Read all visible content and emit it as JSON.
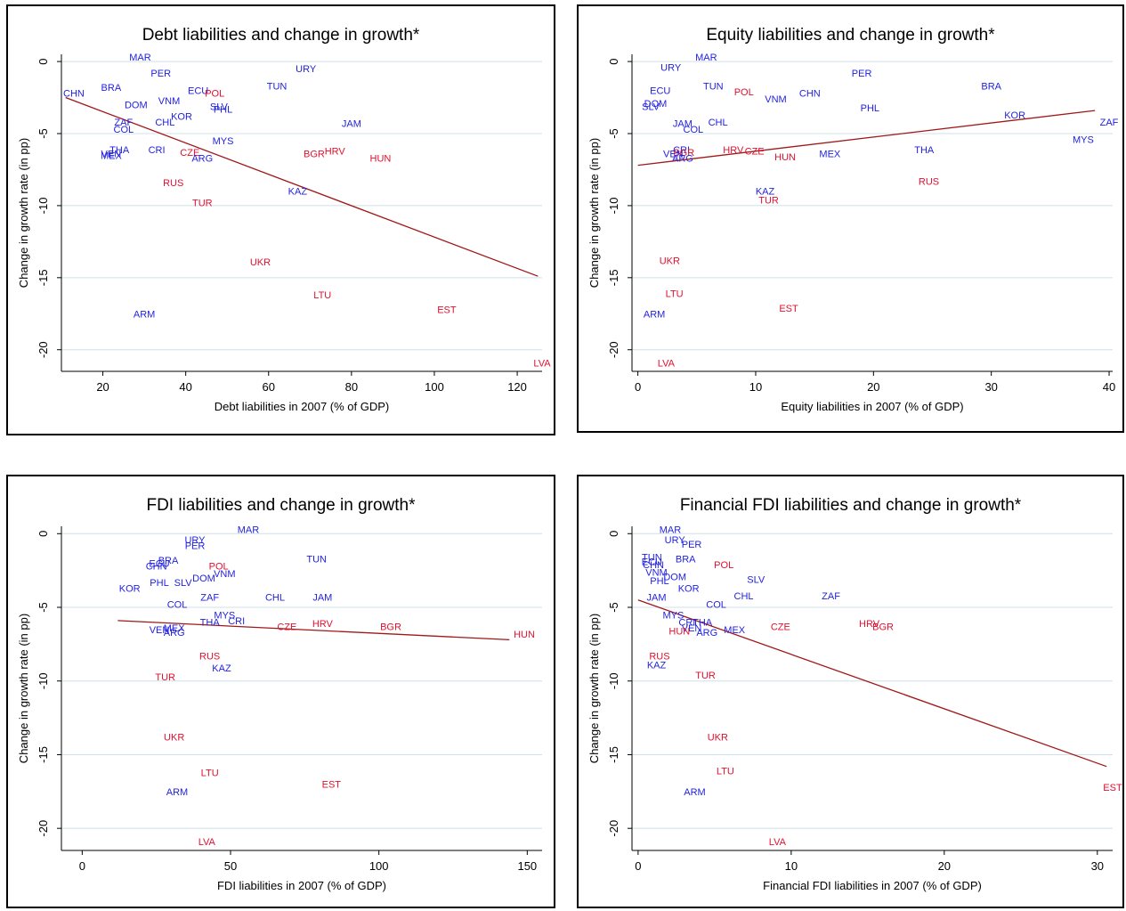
{
  "colors": {
    "blue": "#1f1fe0",
    "red": "#e01030",
    "fit_line": "#a01818",
    "grid": "#cfe0e8",
    "axis": "#000000"
  },
  "chart_data": [
    {
      "type": "scatter",
      "title": "Debt liabilities and change in growth*",
      "xlabel": "Debt liabilities in 2007 (% of GDP)",
      "ylabel": "Change in growth rate (in pp)",
      "xlim": [
        10,
        126
      ],
      "ylim": [
        -21.5,
        0.5
      ],
      "xticks": [
        20,
        40,
        60,
        80,
        100,
        120
      ],
      "yticks": [
        0,
        -5,
        -10,
        -15,
        -20
      ],
      "grid": true,
      "fit_line": [
        [
          11,
          -2.5
        ],
        [
          125,
          -14.9
        ]
      ],
      "points": [
        {
          "label": "MAR",
          "x": 29,
          "y": 0.3,
          "group": "blue"
        },
        {
          "label": "PER",
          "x": 34,
          "y": -0.8,
          "group": "blue"
        },
        {
          "label": "URY",
          "x": 69,
          "y": -0.5,
          "group": "blue"
        },
        {
          "label": "CHN",
          "x": 13,
          "y": -2.2,
          "group": "blue"
        },
        {
          "label": "BRA",
          "x": 22,
          "y": -1.8,
          "group": "blue"
        },
        {
          "label": "TUN",
          "x": 62,
          "y": -1.7,
          "group": "blue"
        },
        {
          "label": "ECU",
          "x": 43,
          "y": -2.0,
          "group": "blue"
        },
        {
          "label": "POL",
          "x": 47,
          "y": -2.2,
          "group": "red"
        },
        {
          "label": "VNM",
          "x": 36,
          "y": -2.7,
          "group": "blue"
        },
        {
          "label": "DOM",
          "x": 28,
          "y": -3.0,
          "group": "blue"
        },
        {
          "label": "SLV",
          "x": 48,
          "y": -3.1,
          "group": "blue"
        },
        {
          "label": "PHL",
          "x": 49,
          "y": -3.3,
          "group": "blue"
        },
        {
          "label": "KOR",
          "x": 39,
          "y": -3.8,
          "group": "blue"
        },
        {
          "label": "ZAF",
          "x": 25,
          "y": -4.2,
          "group": "blue"
        },
        {
          "label": "CHL",
          "x": 35,
          "y": -4.2,
          "group": "blue"
        },
        {
          "label": "JAM",
          "x": 80,
          "y": -4.3,
          "group": "blue"
        },
        {
          "label": "COL",
          "x": 25,
          "y": -4.7,
          "group": "blue"
        },
        {
          "label": "MYS",
          "x": 49,
          "y": -5.5,
          "group": "blue"
        },
        {
          "label": "THA",
          "x": 24,
          "y": -6.1,
          "group": "blue"
        },
        {
          "label": "CRI",
          "x": 33,
          "y": -6.1,
          "group": "blue"
        },
        {
          "label": "CZE",
          "x": 41,
          "y": -6.3,
          "group": "red"
        },
        {
          "label": "BGR",
          "x": 71,
          "y": -6.4,
          "group": "red"
        },
        {
          "label": "HRV",
          "x": 76,
          "y": -6.2,
          "group": "red"
        },
        {
          "label": "MEX",
          "x": 22,
          "y": -6.5,
          "group": "blue"
        },
        {
          "label": "VEN",
          "x": 22,
          "y": -6.4,
          "group": "blue"
        },
        {
          "label": "ARG",
          "x": 44,
          "y": -6.7,
          "group": "blue"
        },
        {
          "label": "HUN",
          "x": 87,
          "y": -6.7,
          "group": "red"
        },
        {
          "label": "RUS",
          "x": 37,
          "y": -8.4,
          "group": "red"
        },
        {
          "label": "KAZ",
          "x": 67,
          "y": -9.0,
          "group": "blue"
        },
        {
          "label": "TUR",
          "x": 44,
          "y": -9.8,
          "group": "red"
        },
        {
          "label": "UKR",
          "x": 58,
          "y": -13.9,
          "group": "red"
        },
        {
          "label": "LTU",
          "x": 73,
          "y": -16.2,
          "group": "red"
        },
        {
          "label": "EST",
          "x": 103,
          "y": -17.2,
          "group": "red"
        },
        {
          "label": "ARM",
          "x": 30,
          "y": -17.5,
          "group": "blue"
        },
        {
          "label": "LVA",
          "x": 126,
          "y": -20.9,
          "group": "red"
        }
      ]
    },
    {
      "type": "scatter",
      "title": "Equity liabilities and change in growth*",
      "xlabel": "Equity liabilities in 2007 (% of GDP)",
      "ylabel": "Change in growth rate (in pp)",
      "xlim": [
        -0.5,
        40.3
      ],
      "ylim": [
        -21.5,
        0.5
      ],
      "xticks": [
        0,
        10,
        20,
        30,
        40
      ],
      "yticks": [
        0,
        -5,
        -10,
        -15,
        -20
      ],
      "grid": true,
      "fit_line": [
        [
          0,
          -7.2
        ],
        [
          38.8,
          -3.4
        ]
      ],
      "points": [
        {
          "label": "MAR",
          "x": 5.8,
          "y": 0.3,
          "group": "blue"
        },
        {
          "label": "URY",
          "x": 2.8,
          "y": -0.4,
          "group": "blue"
        },
        {
          "label": "PER",
          "x": 19,
          "y": -0.8,
          "group": "blue"
        },
        {
          "label": "BRA",
          "x": 30,
          "y": -1.7,
          "group": "blue"
        },
        {
          "label": "TUN",
          "x": 6.4,
          "y": -1.7,
          "group": "blue"
        },
        {
          "label": "ECU",
          "x": 1.9,
          "y": -2.0,
          "group": "blue"
        },
        {
          "label": "POL",
          "x": 9.0,
          "y": -2.1,
          "group": "red"
        },
        {
          "label": "CHN",
          "x": 14.6,
          "y": -2.2,
          "group": "blue"
        },
        {
          "label": "VNM",
          "x": 11.7,
          "y": -2.6,
          "group": "blue"
        },
        {
          "label": "DOM",
          "x": 1.5,
          "y": -2.9,
          "group": "blue"
        },
        {
          "label": "SLV",
          "x": 1.1,
          "y": -3.1,
          "group": "blue"
        },
        {
          "label": "PHL",
          "x": 19.7,
          "y": -3.2,
          "group": "blue"
        },
        {
          "label": "KOR",
          "x": 32,
          "y": -3.7,
          "group": "blue"
        },
        {
          "label": "ZAF",
          "x": 40,
          "y": -4.2,
          "group": "blue"
        },
        {
          "label": "JAM",
          "x": 3.8,
          "y": -4.3,
          "group": "blue"
        },
        {
          "label": "CHL",
          "x": 6.8,
          "y": -4.2,
          "group": "blue"
        },
        {
          "label": "COL",
          "x": 4.7,
          "y": -4.7,
          "group": "blue"
        },
        {
          "label": "MYS",
          "x": 37.8,
          "y": -5.4,
          "group": "blue"
        },
        {
          "label": "CRI",
          "x": 3.7,
          "y": -6.1,
          "group": "blue"
        },
        {
          "label": "THA",
          "x": 24.3,
          "y": -6.1,
          "group": "blue"
        },
        {
          "label": "HRV",
          "x": 8.1,
          "y": -6.1,
          "group": "red"
        },
        {
          "label": "CZE",
          "x": 9.9,
          "y": -6.2,
          "group": "red"
        },
        {
          "label": "BGR",
          "x": 3.9,
          "y": -6.3,
          "group": "red"
        },
        {
          "label": "VEN",
          "x": 3.0,
          "y": -6.4,
          "group": "blue"
        },
        {
          "label": "ARG",
          "x": 3.8,
          "y": -6.7,
          "group": "blue"
        },
        {
          "label": "MEX",
          "x": 16.3,
          "y": -6.4,
          "group": "blue"
        },
        {
          "label": "HUN",
          "x": 12.5,
          "y": -6.6,
          "group": "red"
        },
        {
          "label": "RUS",
          "x": 24.7,
          "y": -8.3,
          "group": "red"
        },
        {
          "label": "KAZ",
          "x": 10.8,
          "y": -9.0,
          "group": "blue"
        },
        {
          "label": "TUR",
          "x": 11.1,
          "y": -9.6,
          "group": "red"
        },
        {
          "label": "UKR",
          "x": 2.7,
          "y": -13.8,
          "group": "red"
        },
        {
          "label": "LTU",
          "x": 3.1,
          "y": -16.1,
          "group": "red"
        },
        {
          "label": "EST",
          "x": 12.8,
          "y": -17.1,
          "group": "red"
        },
        {
          "label": "ARM",
          "x": 1.4,
          "y": -17.5,
          "group": "blue"
        },
        {
          "label": "LVA",
          "x": 2.4,
          "y": -20.9,
          "group": "red"
        }
      ]
    },
    {
      "type": "scatter",
      "title": "FDI liabilities and change in growth*",
      "xlabel": "FDI liabilities in 2007 (% of GDP)",
      "ylabel": "Change in growth rate (in pp)",
      "xlim": [
        -7,
        155
      ],
      "ylim": [
        -21.5,
        0.5
      ],
      "xticks": [
        0,
        50,
        100,
        150
      ],
      "yticks": [
        0,
        -5,
        -10,
        -15,
        -20
      ],
      "grid": true,
      "fit_line": [
        [
          12,
          -5.9
        ],
        [
          144,
          -7.2
        ]
      ],
      "points": [
        {
          "label": "MAR",
          "x": 56,
          "y": 0.3,
          "group": "blue"
        },
        {
          "label": "URY",
          "x": 38,
          "y": -0.4,
          "group": "blue"
        },
        {
          "label": "PER",
          "x": 38,
          "y": -0.8,
          "group": "blue"
        },
        {
          "label": "TUN",
          "x": 79,
          "y": -1.7,
          "group": "blue"
        },
        {
          "label": "BRA",
          "x": 29,
          "y": -1.8,
          "group": "blue"
        },
        {
          "label": "ECU",
          "x": 26,
          "y": -2.0,
          "group": "blue"
        },
        {
          "label": "CHN",
          "x": 25,
          "y": -2.2,
          "group": "blue"
        },
        {
          "label": "POL",
          "x": 46,
          "y": -2.2,
          "group": "red"
        },
        {
          "label": "VNM",
          "x": 48,
          "y": -2.7,
          "group": "blue"
        },
        {
          "label": "DOM",
          "x": 41,
          "y": -3.0,
          "group": "blue"
        },
        {
          "label": "PHL",
          "x": 26,
          "y": -3.3,
          "group": "blue"
        },
        {
          "label": "SLV",
          "x": 34,
          "y": -3.3,
          "group": "blue"
        },
        {
          "label": "KOR",
          "x": 16,
          "y": -3.7,
          "group": "blue"
        },
        {
          "label": "ZAF",
          "x": 43,
          "y": -4.3,
          "group": "blue"
        },
        {
          "label": "CHL",
          "x": 65,
          "y": -4.3,
          "group": "blue"
        },
        {
          "label": "JAM",
          "x": 81,
          "y": -4.3,
          "group": "blue"
        },
        {
          "label": "COL",
          "x": 32,
          "y": -4.8,
          "group": "blue"
        },
        {
          "label": "MYS",
          "x": 48,
          "y": -5.5,
          "group": "blue"
        },
        {
          "label": "THA",
          "x": 43,
          "y": -6.0,
          "group": "blue"
        },
        {
          "label": "CRI",
          "x": 52,
          "y": -5.9,
          "group": "blue"
        },
        {
          "label": "CZE",
          "x": 69,
          "y": -6.3,
          "group": "red"
        },
        {
          "label": "HRV",
          "x": 81,
          "y": -6.1,
          "group": "red"
        },
        {
          "label": "BGR",
          "x": 104,
          "y": -6.3,
          "group": "red"
        },
        {
          "label": "HUN",
          "x": 149,
          "y": -6.8,
          "group": "red"
        },
        {
          "label": "VEN",
          "x": 26,
          "y": -6.5,
          "group": "blue"
        },
        {
          "label": "MEX",
          "x": 31,
          "y": -6.4,
          "group": "blue"
        },
        {
          "label": "ARG",
          "x": 31,
          "y": -6.7,
          "group": "blue"
        },
        {
          "label": "RUS",
          "x": 43,
          "y": -8.3,
          "group": "red"
        },
        {
          "label": "KAZ",
          "x": 47,
          "y": -9.1,
          "group": "blue"
        },
        {
          "label": "TUR",
          "x": 28,
          "y": -9.7,
          "group": "red"
        },
        {
          "label": "UKR",
          "x": 31,
          "y": -13.8,
          "group": "red"
        },
        {
          "label": "LTU",
          "x": 43,
          "y": -16.2,
          "group": "red"
        },
        {
          "label": "EST",
          "x": 84,
          "y": -17.0,
          "group": "red"
        },
        {
          "label": "ARM",
          "x": 32,
          "y": -17.5,
          "group": "blue"
        },
        {
          "label": "LVA",
          "x": 42,
          "y": -20.9,
          "group": "red"
        }
      ]
    },
    {
      "type": "scatter",
      "title": "Financial FDI liabilities and change in growth*",
      "xlabel": "Financial FDI liabilities in 2007 (% of GDP)",
      "ylabel": "Change in growth rate (in pp)",
      "xlim": [
        -0.4,
        31
      ],
      "ylim": [
        -21.5,
        0.5
      ],
      "xticks": [
        0,
        10,
        20,
        30
      ],
      "yticks": [
        0,
        -5,
        -10,
        -15,
        -20
      ],
      "grid": true,
      "fit_line": [
        [
          0,
          -4.5
        ],
        [
          30.6,
          -15.8
        ]
      ],
      "points": [
        {
          "label": "MAR",
          "x": 2.1,
          "y": 0.3,
          "group": "blue"
        },
        {
          "label": "URY",
          "x": 2.4,
          "y": -0.4,
          "group": "blue"
        },
        {
          "label": "PER",
          "x": 3.5,
          "y": -0.7,
          "group": "blue"
        },
        {
          "label": "TUN",
          "x": 0.9,
          "y": -1.6,
          "group": "blue"
        },
        {
          "label": "BRA",
          "x": 3.1,
          "y": -1.7,
          "group": "blue"
        },
        {
          "label": "ECU",
          "x": 0.9,
          "y": -1.9,
          "group": "blue"
        },
        {
          "label": "CHN",
          "x": 1.0,
          "y": -2.1,
          "group": "blue"
        },
        {
          "label": "POL",
          "x": 5.6,
          "y": -2.1,
          "group": "red"
        },
        {
          "label": "VNM",
          "x": 1.2,
          "y": -2.6,
          "group": "blue"
        },
        {
          "label": "DOM",
          "x": 2.4,
          "y": -2.9,
          "group": "blue"
        },
        {
          "label": "PHL",
          "x": 1.4,
          "y": -3.2,
          "group": "blue"
        },
        {
          "label": "SLV",
          "x": 7.7,
          "y": -3.1,
          "group": "blue"
        },
        {
          "label": "KOR",
          "x": 3.3,
          "y": -3.7,
          "group": "blue"
        },
        {
          "label": "ZAF",
          "x": 12.6,
          "y": -4.2,
          "group": "blue"
        },
        {
          "label": "CHL",
          "x": 6.9,
          "y": -4.2,
          "group": "blue"
        },
        {
          "label": "JAM",
          "x": 1.2,
          "y": -4.3,
          "group": "blue"
        },
        {
          "label": "COL",
          "x": 5.1,
          "y": -4.8,
          "group": "blue"
        },
        {
          "label": "MYS",
          "x": 2.3,
          "y": -5.5,
          "group": "blue"
        },
        {
          "label": "CRI",
          "x": 3.2,
          "y": -6.0,
          "group": "blue"
        },
        {
          "label": "THA",
          "x": 4.2,
          "y": -6.0,
          "group": "blue"
        },
        {
          "label": "HRV",
          "x": 15.1,
          "y": -6.1,
          "group": "red"
        },
        {
          "label": "BGR",
          "x": 16.0,
          "y": -6.3,
          "group": "red"
        },
        {
          "label": "CZE",
          "x": 9.3,
          "y": -6.3,
          "group": "red"
        },
        {
          "label": "VEN",
          "x": 3.5,
          "y": -6.4,
          "group": "blue"
        },
        {
          "label": "MEX",
          "x": 6.3,
          "y": -6.5,
          "group": "blue"
        },
        {
          "label": "HUN",
          "x": 2.7,
          "y": -6.6,
          "group": "red"
        },
        {
          "label": "ARG",
          "x": 4.5,
          "y": -6.7,
          "group": "blue"
        },
        {
          "label": "RUS",
          "x": 1.4,
          "y": -8.3,
          "group": "red"
        },
        {
          "label": "KAZ",
          "x": 1.2,
          "y": -8.9,
          "group": "blue"
        },
        {
          "label": "TUR",
          "x": 4.4,
          "y": -9.6,
          "group": "red"
        },
        {
          "label": "UKR",
          "x": 5.2,
          "y": -13.8,
          "group": "red"
        },
        {
          "label": "LTU",
          "x": 5.7,
          "y": -16.1,
          "group": "red"
        },
        {
          "label": "ARM",
          "x": 3.7,
          "y": -17.5,
          "group": "blue"
        },
        {
          "label": "LVA",
          "x": 9.1,
          "y": -20.9,
          "group": "red"
        },
        {
          "label": "EST",
          "x": 31,
          "y": -17.2,
          "group": "red"
        }
      ]
    }
  ]
}
